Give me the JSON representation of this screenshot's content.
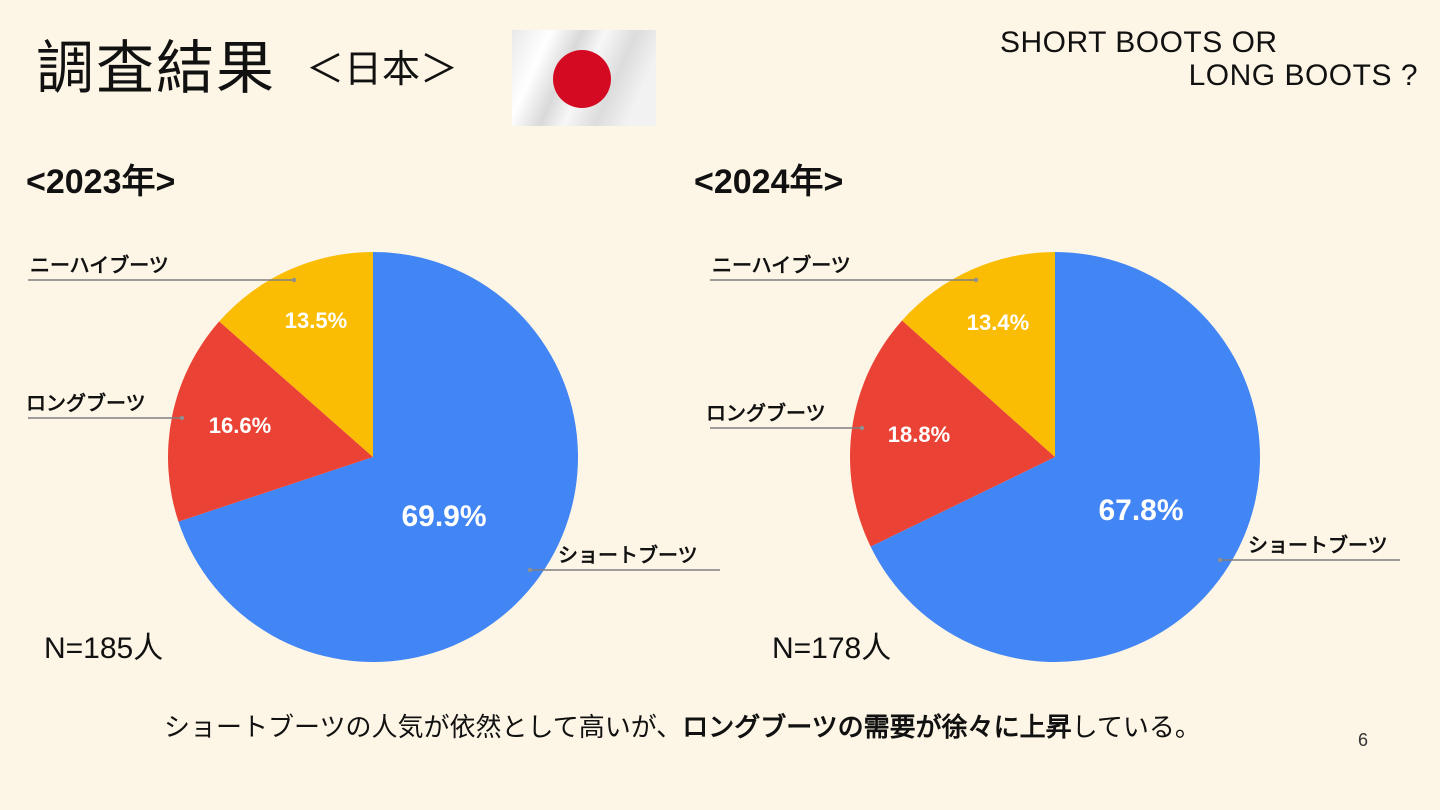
{
  "slide": {
    "title": "調査結果",
    "subtitle": "＜日本＞",
    "tagline_line1": "SHORT BOOTS OR",
    "tagline_line2": "LONG BOOTS ?",
    "summary_plain_1": "ショートブーツの人気が依然として高いが、",
    "summary_bold": "ロングブーツの需要が徐々に上昇",
    "summary_plain_2": "している。",
    "page_number": "6",
    "flag_icon": "japan-flag-icon"
  },
  "colors": {
    "background": "#fdf6e6",
    "short_boots": "#4285f4",
    "long_boots": "#ea4335",
    "knee_high_boots": "#fbbc04",
    "flag_red": "#d40a22"
  },
  "chart_data": [
    {
      "type": "pie",
      "title": "<2023年>",
      "n_label": "N=185人",
      "slices": [
        {
          "label": "ショートブーツ",
          "value": 69.9,
          "display": "69.9%"
        },
        {
          "label": "ロングブーツ",
          "value": 16.6,
          "display": "16.6%"
        },
        {
          "label": "ニーハイブーツ",
          "value": 13.5,
          "display": "13.5%"
        }
      ]
    },
    {
      "type": "pie",
      "title": "<2024年>",
      "n_label": "N=178人",
      "slices": [
        {
          "label": "ショートブーツ",
          "value": 67.8,
          "display": "67.8%"
        },
        {
          "label": "ロングブーツ",
          "value": 18.8,
          "display": "18.8%"
        },
        {
          "label": "ニーハイブーツ",
          "value": 13.4,
          "display": "13.4%"
        }
      ]
    }
  ]
}
